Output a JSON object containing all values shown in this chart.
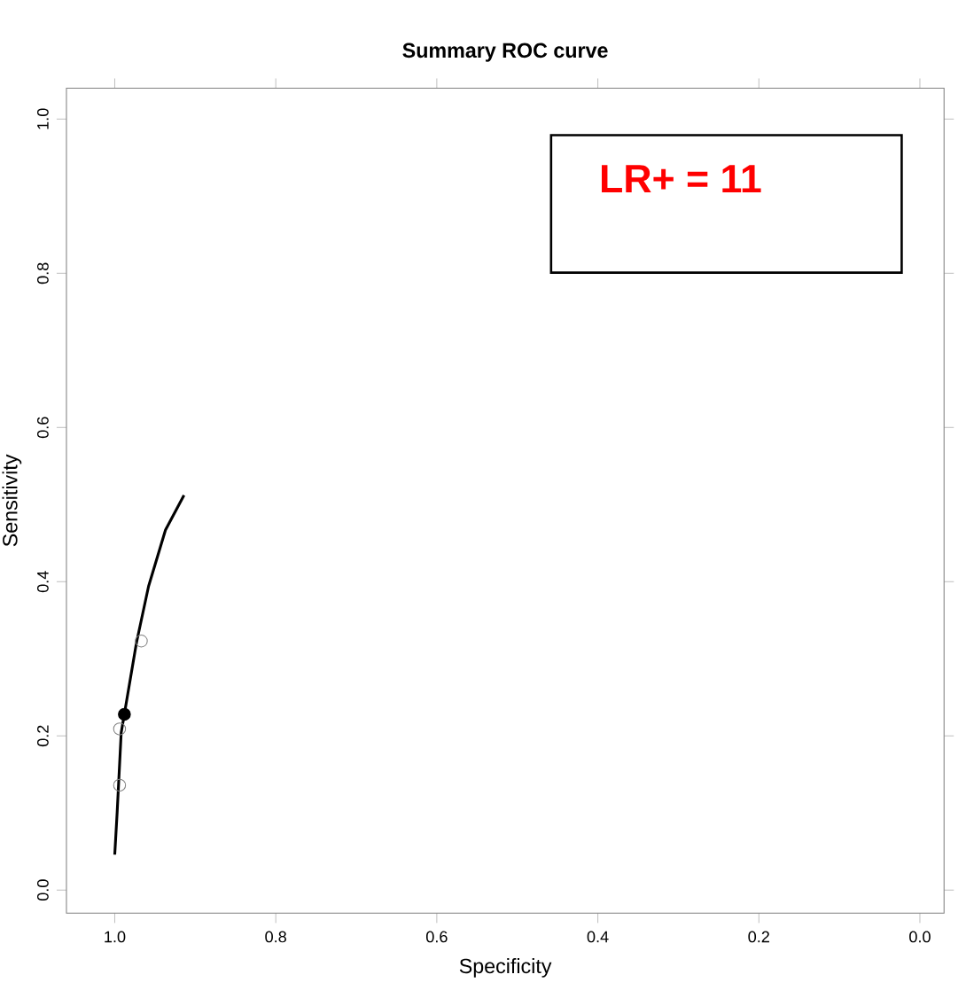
{
  "chart_data": {
    "type": "line",
    "title": "Summary ROC curve",
    "xlabel": "Specificity",
    "ylabel": "Sensitivity",
    "xlim": [
      1.06,
      -0.03
    ],
    "ylim": [
      -0.03,
      1.04
    ],
    "xticks": [
      {
        "value": 1.0,
        "label": "1.0"
      },
      {
        "value": 0.8,
        "label": "0.8"
      },
      {
        "value": 0.6,
        "label": "0.6"
      },
      {
        "value": 0.4,
        "label": "0.4"
      },
      {
        "value": 0.2,
        "label": "0.2"
      },
      {
        "value": 0.0,
        "label": "0.0"
      }
    ],
    "yticks": [
      {
        "value": 0.0,
        "label": "0.0"
      },
      {
        "value": 0.2,
        "label": "0.2"
      },
      {
        "value": 0.4,
        "label": "0.4"
      },
      {
        "value": 0.6,
        "label": "0.6"
      },
      {
        "value": 0.8,
        "label": "0.8"
      },
      {
        "value": 1.0,
        "label": "1.0"
      }
    ],
    "grid": false,
    "series": [
      {
        "color": "#000000",
        "marker": "none",
        "line_style": "solid",
        "x": [
          1.0,
          0.997,
          0.992,
          0.973,
          0.958,
          0.937,
          0.914
        ],
        "values": [
          0.046,
          0.101,
          0.204,
          0.321,
          0.394,
          0.467,
          0.512
        ]
      },
      {
        "type": "scatter",
        "color": "#808080",
        "marker": "circle",
        "x": [
          0.994,
          0.994,
          0.967
        ],
        "values": [
          0.136,
          0.209,
          0.323
        ]
      },
      {
        "type": "scatter",
        "color": "#000000",
        "marker": "dot",
        "x": [
          0.988
        ],
        "values": [
          0.228
        ]
      }
    ],
    "annotations": [
      "LR+ = 11"
    ]
  }
}
